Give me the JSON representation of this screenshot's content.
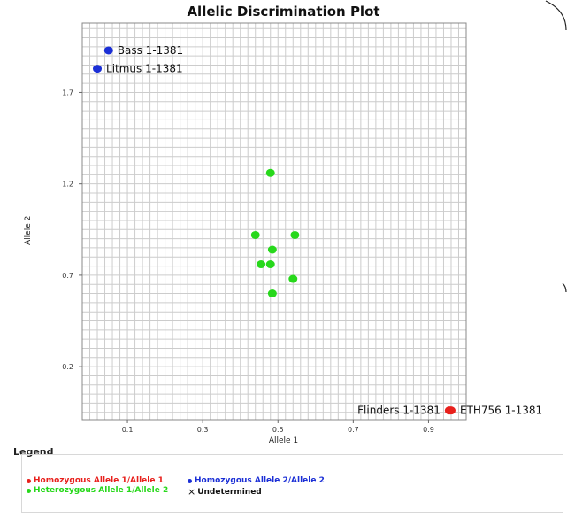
{
  "chart_data": {
    "type": "scatter",
    "title": "Allelic Discrimination Plot",
    "xlabel": "Allele 1",
    "ylabel": "Allele 2",
    "xlim": [
      -0.02,
      1.0
    ],
    "ylim": [
      -0.09,
      2.08
    ],
    "x_ticks": [
      0.1,
      0.3,
      0.5,
      0.7,
      0.9
    ],
    "y_ticks": [
      0.2,
      0.7,
      1.2,
      1.7
    ],
    "grid": true,
    "legend_title": "Legend",
    "legend_position": "bottom",
    "categories": [
      {
        "label": "Homozygous Allele 1/Allele 1",
        "color": "#e8201c",
        "marker": "dot"
      },
      {
        "label": "Homozygous Allele 2/Allele 2",
        "color": "#1b2fd6",
        "marker": "dot"
      },
      {
        "label": "Heterozygous Allele 1/Allele 2",
        "color": "#27d81b",
        "marker": "dot"
      },
      {
        "label": "Undetermined",
        "color": "#111111",
        "marker": "x"
      }
    ],
    "points": [
      {
        "x": 0.05,
        "y": 1.93,
        "category": 1,
        "label": "Bass 1-1381"
      },
      {
        "x": 0.02,
        "y": 1.83,
        "category": 1,
        "label": "Litmus 1-1381"
      },
      {
        "x": 0.48,
        "y": 1.26,
        "category": 2,
        "label": ""
      },
      {
        "x": 0.44,
        "y": 0.92,
        "category": 2,
        "label": ""
      },
      {
        "x": 0.545,
        "y": 0.92,
        "category": 2,
        "label": ""
      },
      {
        "x": 0.485,
        "y": 0.84,
        "category": 2,
        "label": ""
      },
      {
        "x": 0.455,
        "y": 0.76,
        "category": 2,
        "label": ""
      },
      {
        "x": 0.48,
        "y": 0.76,
        "category": 2,
        "label": ""
      },
      {
        "x": 0.54,
        "y": 0.68,
        "category": 2,
        "label": ""
      },
      {
        "x": 0.485,
        "y": 0.6,
        "category": 2,
        "label": ""
      },
      {
        "x": 0.955,
        "y": -0.04,
        "category": 0,
        "label": "Flinders 1-1381",
        "label_side": "left"
      },
      {
        "x": 0.96,
        "y": -0.04,
        "category": 0,
        "label": "ETH756 1-1381"
      }
    ]
  }
}
